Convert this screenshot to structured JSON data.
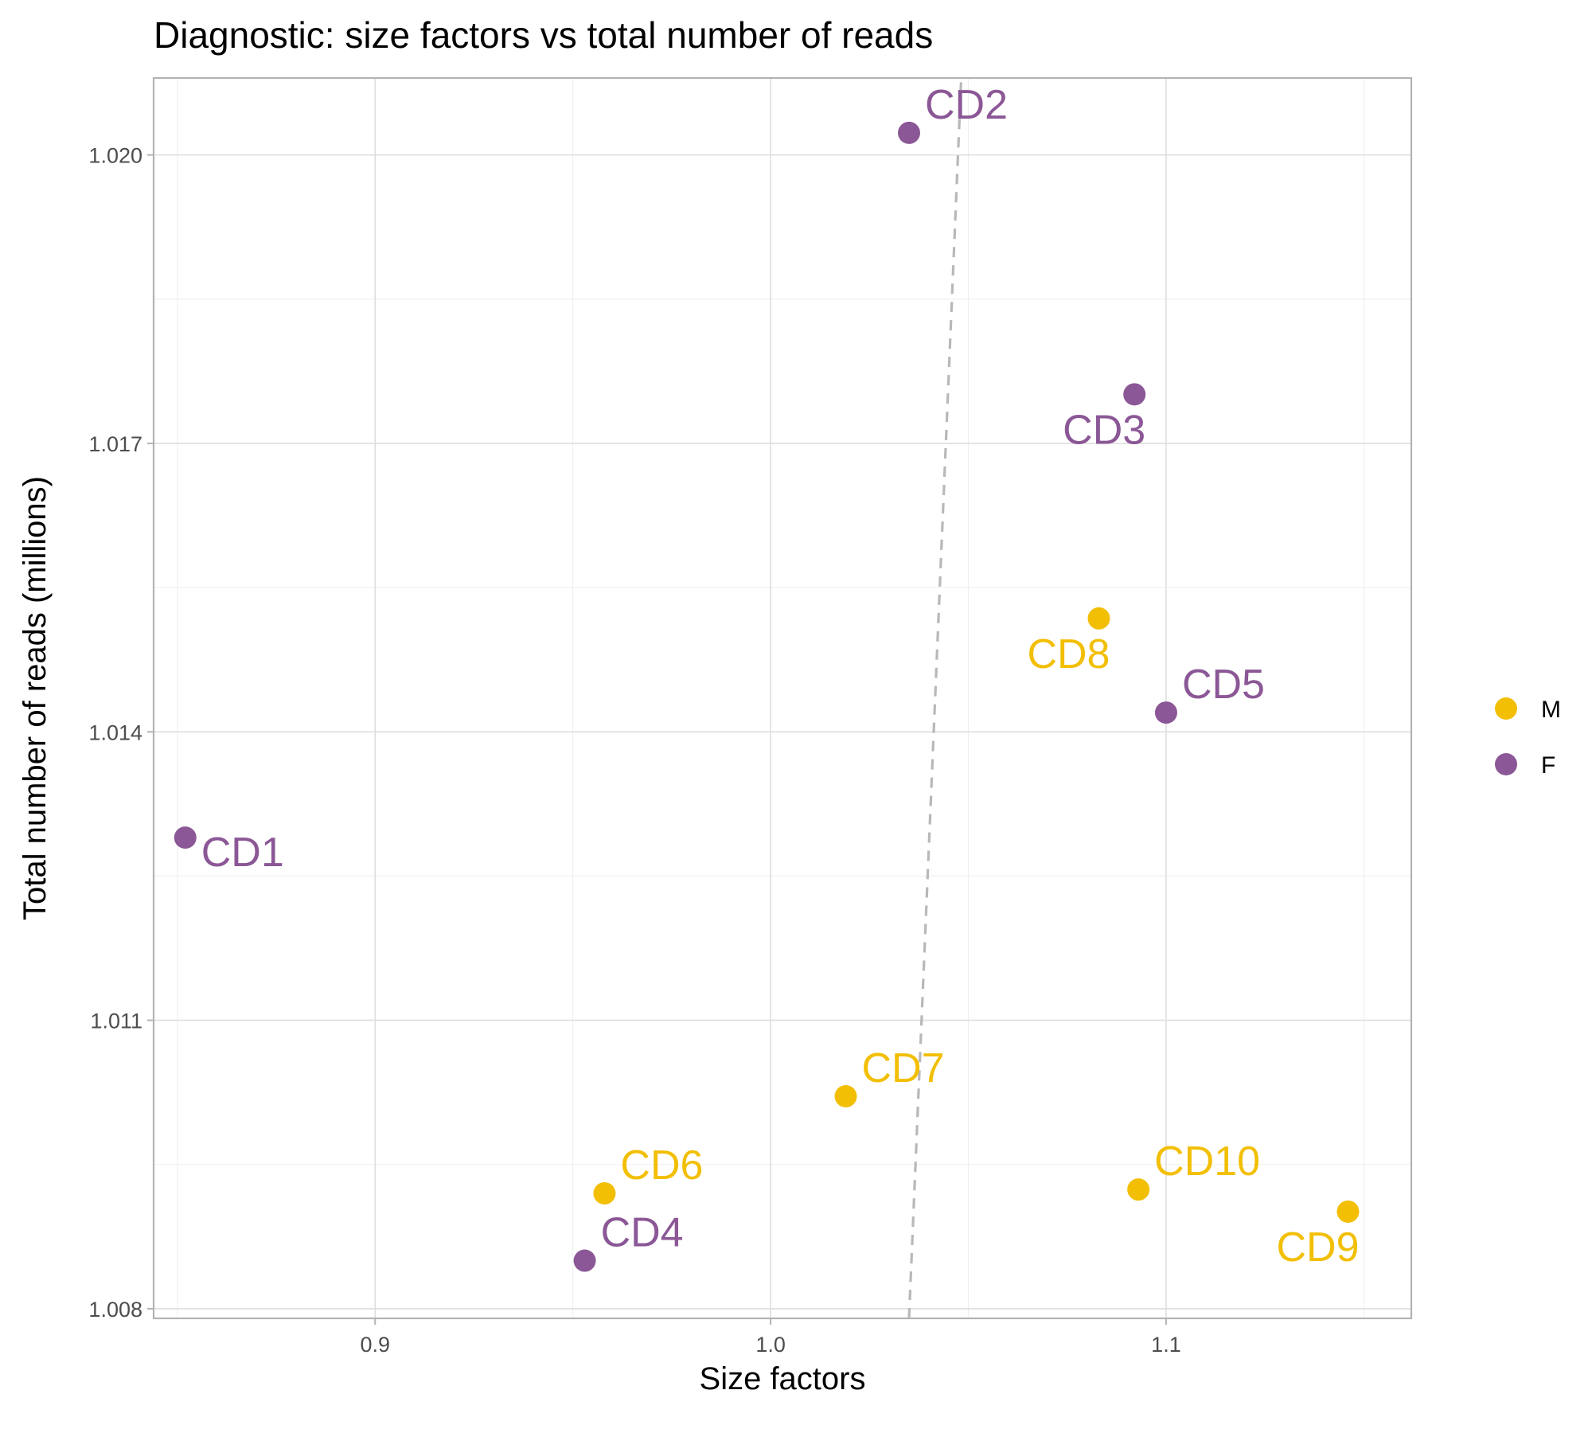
{
  "chart_data": {
    "type": "scatter",
    "title": "Diagnostic: size factors vs total number of reads",
    "xlabel": "Size factors",
    "ylabel": "Total number of reads (millions)",
    "xlim": [
      0.844,
      1.162
    ],
    "ylim": [
      1.0079,
      1.0208
    ],
    "x_ticks": [
      {
        "value": 0.9,
        "label": "0.9"
      },
      {
        "value": 1.0,
        "label": "1.0"
      },
      {
        "value": 1.1,
        "label": "1.1"
      }
    ],
    "x_minor_ticks": [
      0.85,
      0.95,
      1.05,
      1.15
    ],
    "y_ticks": [
      {
        "value": 1.008,
        "label": "1.008"
      },
      {
        "value": 1.011,
        "label": "1.011"
      },
      {
        "value": 1.014,
        "label": "1.014"
      },
      {
        "value": 1.017,
        "label": "1.017"
      },
      {
        "value": 1.02,
        "label": "1.020"
      }
    ],
    "y_minor_ticks": [
      1.0095,
      1.0125,
      1.0155,
      1.0185
    ],
    "grid": true,
    "legend": {
      "position": "right",
      "entries": [
        {
          "label": "M",
          "color": "#F2BF05"
        },
        {
          "label": "F",
          "color": "#8B5796"
        }
      ]
    },
    "series": [
      {
        "name": "M",
        "color": "#F2BF05",
        "points": [
          {
            "label": "CD6",
            "x": 0.958,
            "y": 1.0092,
            "label_pos": "above-right"
          },
          {
            "label": "CD7",
            "x": 1.019,
            "y": 1.01021,
            "label_pos": "above-right"
          },
          {
            "label": "CD8",
            "x": 1.083,
            "y": 1.01518,
            "label_pos": "below-left"
          },
          {
            "label": "CD9",
            "x": 1.146,
            "y": 1.00901,
            "label_pos": "below-left"
          },
          {
            "label": "CD10",
            "x": 1.093,
            "y": 1.00924,
            "label_pos": "above-right"
          }
        ]
      },
      {
        "name": "F",
        "color": "#8B5796",
        "points": [
          {
            "label": "CD1",
            "x": 0.852,
            "y": 1.0129,
            "label_pos": "below-right"
          },
          {
            "label": "CD2",
            "x": 1.035,
            "y": 1.02023,
            "label_pos": "above-right"
          },
          {
            "label": "CD3",
            "x": 1.092,
            "y": 1.01751,
            "label_pos": "below-left"
          },
          {
            "label": "CD4",
            "x": 0.953,
            "y": 1.0085,
            "label_pos": "above-right"
          },
          {
            "label": "CD5",
            "x": 1.1,
            "y": 1.0142,
            "label_pos": "above-right"
          }
        ]
      }
    ],
    "reference_line": {
      "style": "dashed",
      "color": "#b8b8b8",
      "x1": 1.035,
      "y1": 1.0079,
      "x2": 1.0482,
      "y2": 1.0208
    }
  }
}
